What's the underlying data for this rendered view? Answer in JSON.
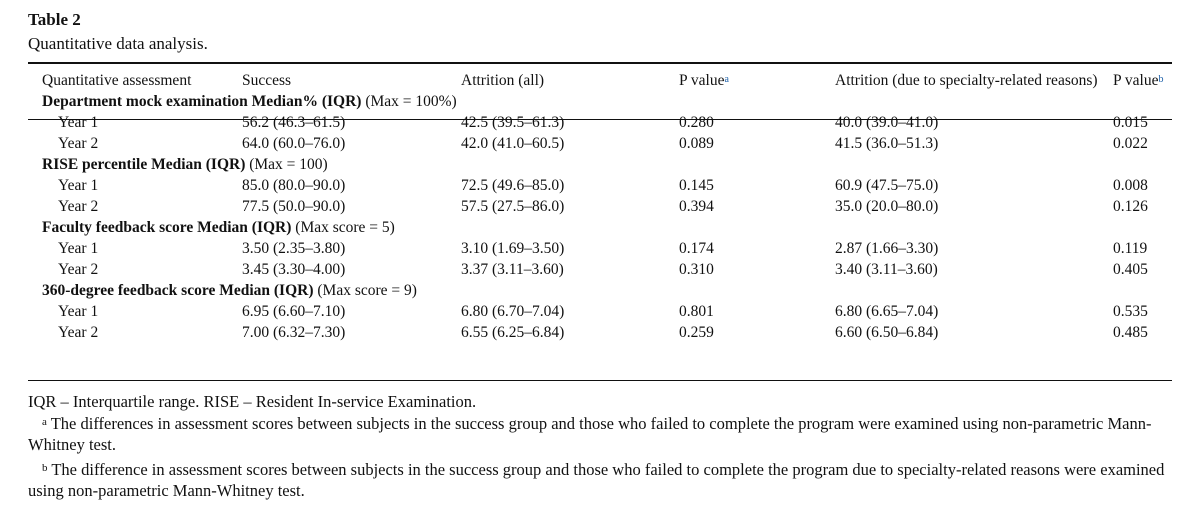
{
  "table": {
    "label": "Table 2",
    "caption": "Quantitative data analysis.",
    "headers": {
      "assessment": "Quantitative assessment",
      "success": "Success",
      "attrition_all": "Attrition (all)",
      "p_value_a": "P value",
      "p_value_a_mark": "a",
      "attrition_specialty": "Attrition (due to specialty-related reasons)",
      "p_value_b": "P value",
      "p_value_b_mark": "b"
    },
    "sections": [
      {
        "title_bold": "Department mock examination Median% (IQR)",
        "title_rest": " (Max = 100%)",
        "rows": [
          {
            "label": "Year 1",
            "success": "56.2 (46.3–61.5)",
            "attrition_all": "42.5 (39.5–61.3)",
            "p_a": "0.280",
            "attrition_specialty": "40.0 (39.0–41.0)",
            "p_b": "0.015"
          },
          {
            "label": "Year 2",
            "success": "64.0 (60.0–76.0)",
            "attrition_all": "42.0 (41.0–60.5)",
            "p_a": "0.089",
            "attrition_specialty": "41.5 (36.0–51.3)",
            "p_b": "0.022"
          }
        ]
      },
      {
        "title_bold": "RISE percentile Median (IQR)",
        "title_rest": " (Max = 100)",
        "rows": [
          {
            "label": "Year 1",
            "success": "85.0 (80.0–90.0)",
            "attrition_all": "72.5 (49.6–85.0)",
            "p_a": "0.145",
            "attrition_specialty": "60.9 (47.5–75.0)",
            "p_b": "0.008"
          },
          {
            "label": "Year 2",
            "success": "77.5 (50.0–90.0)",
            "attrition_all": "57.5 (27.5–86.0)",
            "p_a": "0.394",
            "attrition_specialty": "35.0 (20.0–80.0)",
            "p_b": "0.126"
          }
        ]
      },
      {
        "title_bold": "Faculty feedback score Median (IQR)",
        "title_rest": " (Max score = 5)",
        "rows": [
          {
            "label": "Year 1",
            "success": "3.50 (2.35–3.80)",
            "attrition_all": "3.10 (1.69–3.50)",
            "p_a": "0.174",
            "attrition_specialty": "2.87 (1.66–3.30)",
            "p_b": "0.119"
          },
          {
            "label": "Year 2",
            "success": "3.45 (3.30–4.00)",
            "attrition_all": "3.37 (3.11–3.60)",
            "p_a": "0.310",
            "attrition_specialty": "3.40 (3.11–3.60)",
            "p_b": "0.405"
          }
        ]
      },
      {
        "title_bold": "360-degree feedback score Median (IQR)",
        "title_rest": " (Max score = 9)",
        "rows": [
          {
            "label": "Year 1",
            "success": "6.95 (6.60–7.10)",
            "attrition_all": "6.80 (6.70–7.04)",
            "p_a": "0.801",
            "attrition_specialty": "6.80 (6.65–7.04)",
            "p_b": "0.535"
          },
          {
            "label": "Year 2",
            "success": "7.00 (6.32–7.30)",
            "attrition_all": "6.55 (6.25–6.84)",
            "p_a": "0.259",
            "attrition_specialty": "6.60 (6.50–6.84)",
            "p_b": "0.485"
          }
        ]
      }
    ]
  },
  "footnotes": {
    "abbreviations": "IQR – Interquartile range. RISE – Resident In-service Examination.",
    "note_a_mark": "a",
    "note_a": "The differences in assessment scores between subjects in the success group and those who failed to complete the program were examined using non-parametric Mann-Whitney test.",
    "note_b_mark": "b",
    "note_b": "The difference in assessment scores between subjects in the success group and those who failed to complete the program due to specialty-related reasons were examined using non-parametric Mann-Whitney test."
  }
}
